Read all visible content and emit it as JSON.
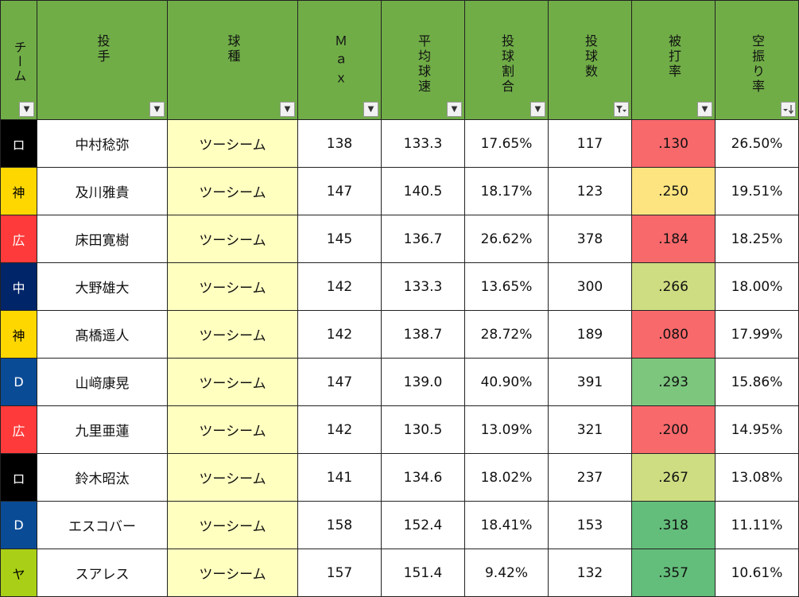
{
  "headers": {
    "team": "チーム",
    "pitcher": "投手",
    "pitch_type": "球種",
    "max": "Ｍａｘ",
    "avg_speed": "平均球速",
    "pitch_ratio": "投球割合",
    "pitch_count": "投球数",
    "batting_avg": "被打率",
    "whiff_rate": "空振り率"
  },
  "filter_icons": {
    "default": "dropdown-arrow-icon",
    "pitch_count": "filter-active-icon",
    "whiff_rate": "sort-descending-icon"
  },
  "rows": [
    {
      "team": "ロ",
      "team_bg": "#000000",
      "team_fg": "#ffffff",
      "pitcher": "中村稔弥",
      "pitch_type": "ツーシーム",
      "max": "138",
      "avg_speed": "133.3",
      "pitch_ratio": "17.65%",
      "pitch_count": "117",
      "batting_avg": ".130",
      "avg_bg": "#f8696b",
      "whiff_rate": "26.50%"
    },
    {
      "team": "神",
      "team_bg": "#ffd700",
      "team_fg": "#000000",
      "pitcher": "及川雅貴",
      "pitch_type": "ツーシーム",
      "max": "147",
      "avg_speed": "140.5",
      "pitch_ratio": "18.17%",
      "pitch_count": "123",
      "batting_avg": ".250",
      "avg_bg": "#fde480",
      "whiff_rate": "19.51%"
    },
    {
      "team": "広",
      "team_bg": "#ff3a3a",
      "team_fg": "#ffffff",
      "pitcher": "床田寛樹",
      "pitch_type": "ツーシーム",
      "max": "145",
      "avg_speed": "136.7",
      "pitch_ratio": "26.62%",
      "pitch_count": "378",
      "batting_avg": ".184",
      "avg_bg": "#f8696b",
      "whiff_rate": "18.25%"
    },
    {
      "team": "中",
      "team_bg": "#002569",
      "team_fg": "#ffffff",
      "pitcher": "大野雄大",
      "pitch_type": "ツーシーム",
      "max": "142",
      "avg_speed": "133.3",
      "pitch_ratio": "13.65%",
      "pitch_count": "300",
      "batting_avg": ".266",
      "avg_bg": "#cfdd82",
      "whiff_rate": "18.00%"
    },
    {
      "team": "神",
      "team_bg": "#ffd700",
      "team_fg": "#000000",
      "pitcher": "髙橋遥人",
      "pitch_type": "ツーシーム",
      "max": "142",
      "avg_speed": "138.7",
      "pitch_ratio": "28.72%",
      "pitch_count": "189",
      "batting_avg": ".080",
      "avg_bg": "#f8696b",
      "whiff_rate": "17.99%"
    },
    {
      "team": "D",
      "team_bg": "#0a4b96",
      "team_fg": "#ffffff",
      "pitcher": "山﨑康晃",
      "pitch_type": "ツーシーム",
      "max": "147",
      "avg_speed": "139.0",
      "pitch_ratio": "40.90%",
      "pitch_count": "391",
      "batting_avg": ".293",
      "avg_bg": "#7cc67e",
      "whiff_rate": "15.86%"
    },
    {
      "team": "広",
      "team_bg": "#ff3a3a",
      "team_fg": "#ffffff",
      "pitcher": "九里亜蓮",
      "pitch_type": "ツーシーム",
      "max": "142",
      "avg_speed": "130.5",
      "pitch_ratio": "13.09%",
      "pitch_count": "321",
      "batting_avg": ".200",
      "avg_bg": "#f8696b",
      "whiff_rate": "14.95%"
    },
    {
      "team": "ロ",
      "team_bg": "#000000",
      "team_fg": "#ffffff",
      "pitcher": "鈴木昭汰",
      "pitch_type": "ツーシーム",
      "max": "141",
      "avg_speed": "134.6",
      "pitch_ratio": "18.02%",
      "pitch_count": "237",
      "batting_avg": ".267",
      "avg_bg": "#cfdd82",
      "whiff_rate": "13.08%"
    },
    {
      "team": "D",
      "team_bg": "#0a4b96",
      "team_fg": "#ffffff",
      "pitcher": "エスコバー",
      "pitch_type": "ツーシーム",
      "max": "158",
      "avg_speed": "152.4",
      "pitch_ratio": "18.41%",
      "pitch_count": "153",
      "batting_avg": ".318",
      "avg_bg": "#63be7b",
      "whiff_rate": "11.11%"
    },
    {
      "team": "ヤ",
      "team_bg": "#a9cf16",
      "team_fg": "#000000",
      "pitcher": "スアレス",
      "pitch_type": "ツーシーム",
      "max": "157",
      "avg_speed": "151.4",
      "pitch_ratio": "9.42%",
      "pitch_count": "132",
      "batting_avg": ".357",
      "avg_bg": "#63be7b",
      "whiff_rate": "10.61%"
    }
  ]
}
